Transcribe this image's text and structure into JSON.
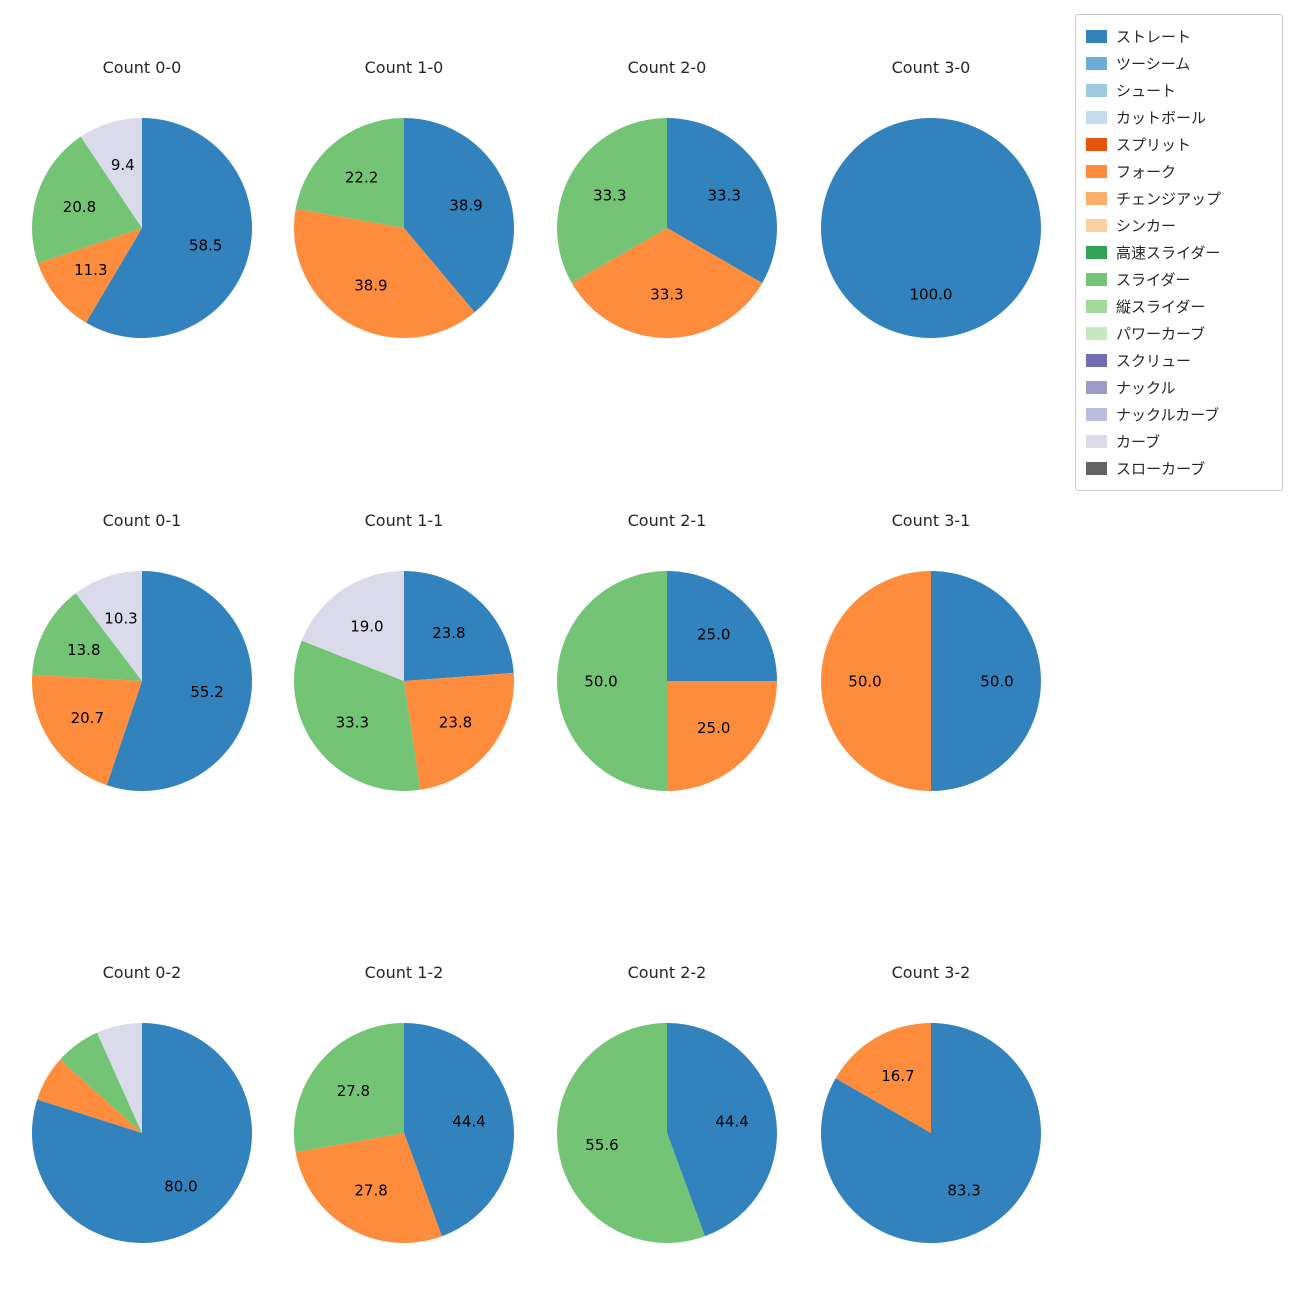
{
  "figure": {
    "background": "#ffffff",
    "text_color": "#262626"
  },
  "legend": {
    "position": "top-right",
    "items": [
      {
        "label": "ストレート",
        "color": "#3182bd"
      },
      {
        "label": "ツーシーム",
        "color": "#6baed6"
      },
      {
        "label": "シュート",
        "color": "#9ecae1"
      },
      {
        "label": "カットボール",
        "color": "#c6dbef"
      },
      {
        "label": "スプリット",
        "color": "#e6550d"
      },
      {
        "label": "フォーク",
        "color": "#fd8d3c"
      },
      {
        "label": "チェンジアップ",
        "color": "#fdae6b"
      },
      {
        "label": "シンカー",
        "color": "#fdd0a2"
      },
      {
        "label": "高速スライダー",
        "color": "#31a354"
      },
      {
        "label": "スライダー",
        "color": "#74c476"
      },
      {
        "label": "縦スライダー",
        "color": "#a1d99b"
      },
      {
        "label": "パワーカーブ",
        "color": "#c7e9c0"
      },
      {
        "label": "スクリュー",
        "color": "#756bb1"
      },
      {
        "label": "ナックル",
        "color": "#9e9ac8"
      },
      {
        "label": "ナックルカーブ",
        "color": "#bcbddc"
      },
      {
        "label": "カーブ",
        "color": "#dadaeb"
      },
      {
        "label": "スローカーブ",
        "color": "#636363"
      }
    ]
  },
  "chart_data": [
    {
      "type": "pie",
      "title": "Count 0-0",
      "start_angle": 90,
      "clockwise": true,
      "slices": [
        {
          "name": "ストレート",
          "value": 58.5,
          "label": "58.5"
        },
        {
          "name": "フォーク",
          "value": 11.3,
          "label": "11.3"
        },
        {
          "name": "スライダー",
          "value": 20.8,
          "label": "20.8"
        },
        {
          "name": "カーブ",
          "value": 9.4,
          "label": "9.4"
        }
      ]
    },
    {
      "type": "pie",
      "title": "Count 1-0",
      "start_angle": 90,
      "clockwise": true,
      "slices": [
        {
          "name": "ストレート",
          "value": 38.9,
          "label": "38.9"
        },
        {
          "name": "フォーク",
          "value": 38.9,
          "label": "38.9"
        },
        {
          "name": "スライダー",
          "value": 22.2,
          "label": "22.2"
        }
      ]
    },
    {
      "type": "pie",
      "title": "Count 2-0",
      "start_angle": 90,
      "clockwise": true,
      "slices": [
        {
          "name": "ストレート",
          "value": 33.3,
          "label": "33.3"
        },
        {
          "name": "フォーク",
          "value": 33.3,
          "label": "33.3"
        },
        {
          "name": "スライダー",
          "value": 33.3,
          "label": "33.3"
        }
      ]
    },
    {
      "type": "pie",
      "title": "Count 3-0",
      "start_angle": 90,
      "clockwise": true,
      "slices": [
        {
          "name": "ストレート",
          "value": 100.0,
          "label": "100.0"
        }
      ]
    },
    {
      "type": "pie",
      "title": "Count 0-1",
      "start_angle": 90,
      "clockwise": true,
      "slices": [
        {
          "name": "ストレート",
          "value": 55.2,
          "label": "55.2"
        },
        {
          "name": "フォーク",
          "value": 20.7,
          "label": "20.7"
        },
        {
          "name": "スライダー",
          "value": 13.8,
          "label": "13.8"
        },
        {
          "name": "カーブ",
          "value": 10.3,
          "label": "10.3"
        }
      ]
    },
    {
      "type": "pie",
      "title": "Count 1-1",
      "start_angle": 90,
      "clockwise": true,
      "slices": [
        {
          "name": "ストレート",
          "value": 23.8,
          "label": "23.8"
        },
        {
          "name": "フォーク",
          "value": 23.8,
          "label": "23.8"
        },
        {
          "name": "スライダー",
          "value": 33.3,
          "label": "33.3"
        },
        {
          "name": "カーブ",
          "value": 19.0,
          "label": "19.0"
        }
      ]
    },
    {
      "type": "pie",
      "title": "Count 2-1",
      "start_angle": 90,
      "clockwise": true,
      "slices": [
        {
          "name": "ストレート",
          "value": 25.0,
          "label": "25.0"
        },
        {
          "name": "フォーク",
          "value": 25.0,
          "label": "25.0"
        },
        {
          "name": "スライダー",
          "value": 50.0,
          "label": "50.0"
        }
      ]
    },
    {
      "type": "pie",
      "title": "Count 3-1",
      "start_angle": 90,
      "clockwise": true,
      "slices": [
        {
          "name": "ストレート",
          "value": 50.0,
          "label": "50.0"
        },
        {
          "name": "フォーク",
          "value": 50.0,
          "label": "50.0"
        }
      ]
    },
    {
      "type": "pie",
      "title": "Count 0-2",
      "start_angle": 90,
      "clockwise": true,
      "slices": [
        {
          "name": "ストレート",
          "value": 80.0,
          "label": "80.0"
        },
        {
          "name": "フォーク",
          "value": 6.7,
          "label": ""
        },
        {
          "name": "スライダー",
          "value": 6.7,
          "label": ""
        },
        {
          "name": "カーブ",
          "value": 6.7,
          "label": ""
        }
      ]
    },
    {
      "type": "pie",
      "title": "Count 1-2",
      "start_angle": 90,
      "clockwise": true,
      "slices": [
        {
          "name": "ストレート",
          "value": 44.4,
          "label": "44.4"
        },
        {
          "name": "フォーク",
          "value": 27.8,
          "label": "27.8"
        },
        {
          "name": "スライダー",
          "value": 27.8,
          "label": "27.8"
        }
      ]
    },
    {
      "type": "pie",
      "title": "Count 2-2",
      "start_angle": 90,
      "clockwise": true,
      "slices": [
        {
          "name": "ストレート",
          "value": 44.4,
          "label": "44.4"
        },
        {
          "name": "スライダー",
          "value": 55.6,
          "label": "55.6"
        }
      ]
    },
    {
      "type": "pie",
      "title": "Count 3-2",
      "start_angle": 90,
      "clockwise": true,
      "slices": [
        {
          "name": "ストレート",
          "value": 83.3,
          "label": "83.3"
        },
        {
          "name": "フォーク",
          "value": 16.7,
          "label": "16.7"
        }
      ]
    }
  ]
}
